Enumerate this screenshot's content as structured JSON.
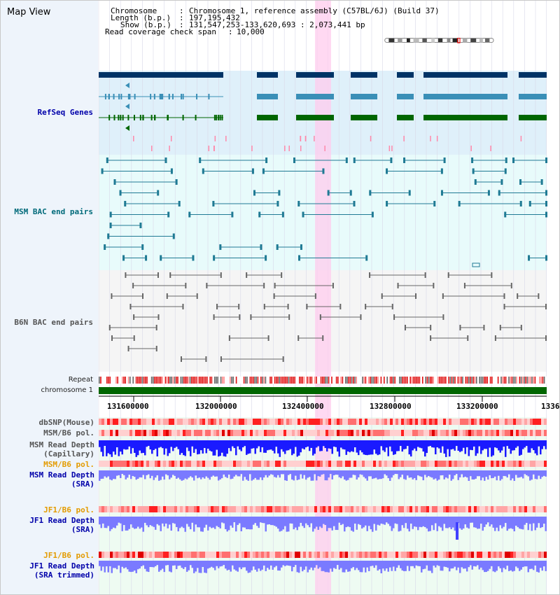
{
  "title": "Map View",
  "info": {
    "chromosome_label": "Chromosome",
    "chromosome_value": "Chromosome 1, reference assembly (C57BL/6J) (Build 37)",
    "length_label": "Length (b.p.)",
    "length_value": "197,195,432",
    "show_label": "Show (b.p.)",
    "show_value": "131,547,253-133,620,693 : 2,073,441 bp",
    "coverage_label": "Read coverage check span",
    "coverage_value": "10,000"
  },
  "tracks": {
    "refseq": "RefSeq Genes",
    "msm_bac": "MSM BAC end pairs",
    "b6n_bac": "B6N BAC end pairs",
    "repeat": "Repeat",
    "chromosome": "chromosome 1",
    "dbsnp": "dbSNP(Mouse)",
    "msm_b6_pol_1": "MSM/B6 pol.",
    "msm_read_depth_cap_1": "MSM Read Depth",
    "msm_read_depth_cap_2": "(Capillary)",
    "msm_b6_pol_2": "MSM/B6 pol.",
    "msm_read_depth_sra_1": "MSM Read Depth",
    "msm_read_depth_sra_2": "(SRA)",
    "jf1_b6_pol_1": "JF1/B6 pol.",
    "jf1_read_depth_sra_1": "JF1 Read Depth",
    "jf1_read_depth_sra_2": "(SRA)",
    "jf1_b6_pol_2": "JF1/B6 pol.",
    "jf1_read_depth_trim_1": "JF1 Read Depth",
    "jf1_read_depth_trim_2": "(SRA trimmed)"
  },
  "axis": {
    "ticks": [
      "131600000",
      "132000000",
      "132400000",
      "132800000",
      "133200000",
      "1336"
    ]
  },
  "colors": {
    "refseq_dark": "#003366",
    "refseq_mid": "#3a8fb7",
    "refseq_green": "#006600",
    "msm_line": "#1f7a94",
    "b6n_line": "#666666",
    "highlight": "#ffccee",
    "chromosome_bar": "#006600",
    "depth_blue": "#1a1aff",
    "depth_light": "#7a7aff"
  }
}
